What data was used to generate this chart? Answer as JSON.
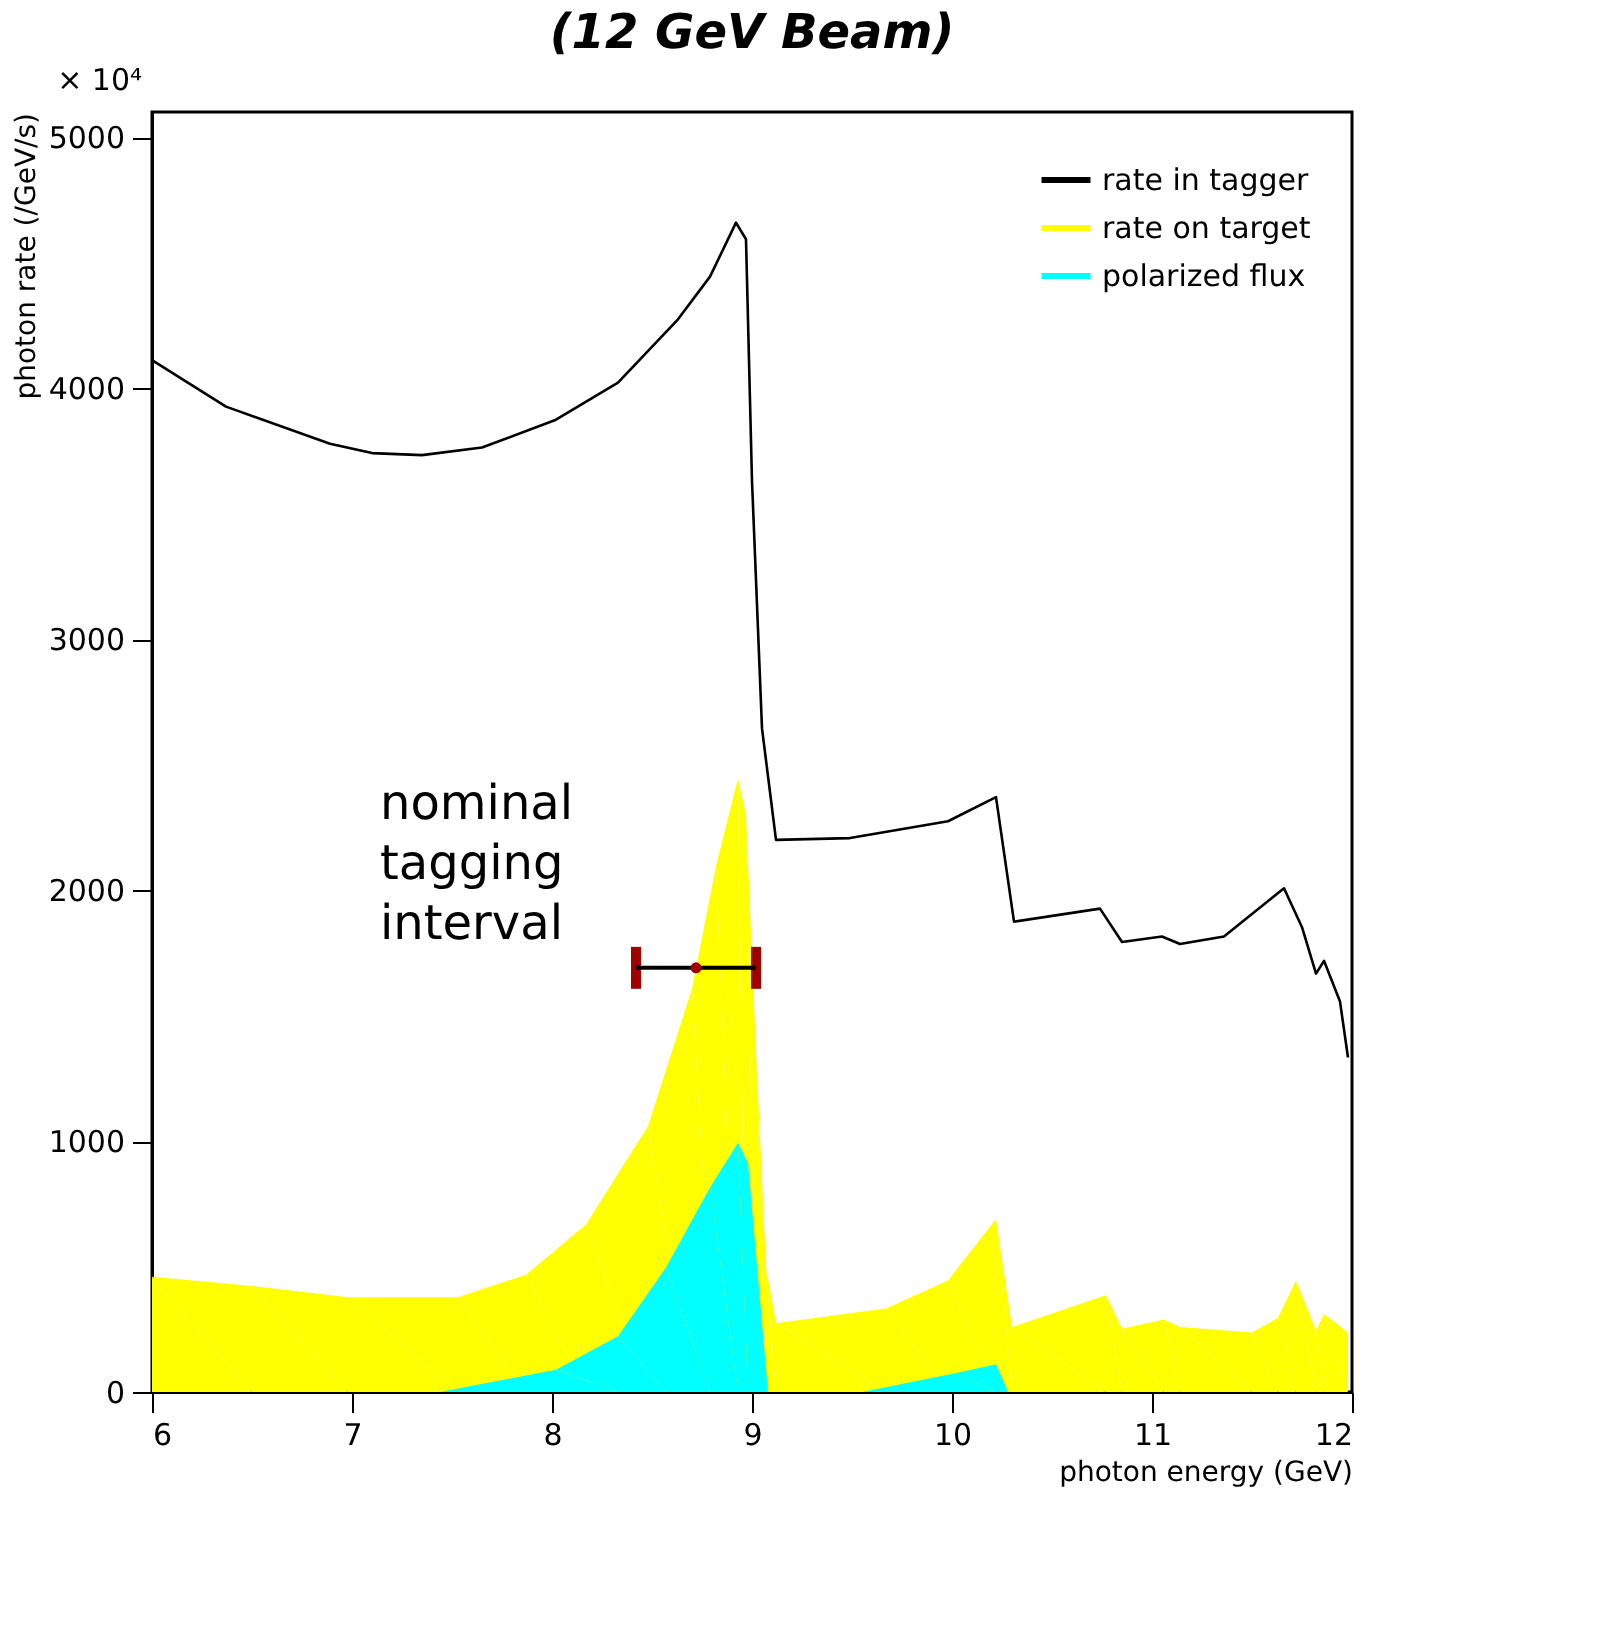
{
  "chart_data": {
    "type": "line",
    "title": "(12 GeV Beam)",
    "xlabel": "photon energy (GeV)",
    "ylabel": "photon rate (/GeV/s)",
    "xlim": [
      6,
      12
    ],
    "ylim": [
      0,
      5100
    ],
    "xticks": [
      6,
      7,
      8,
      9,
      10,
      11,
      12
    ],
    "yticks": [
      0,
      1000,
      2000,
      3000,
      4000,
      5000
    ],
    "grid": false,
    "legend": "top right",
    "series": [
      {
        "name": "rate in tagger",
        "color": "#000000",
        "x": [
          6.0,
          6.37,
          6.89,
          7.1,
          7.35,
          7.65,
          8.02,
          8.33,
          8.63,
          8.79,
          8.92,
          8.97,
          9.0,
          9.05,
          9.12,
          9.49,
          9.98,
          10.22,
          10.31,
          10.74,
          10.85,
          11.05,
          11.14,
          11.36,
          11.66,
          11.75,
          11.82,
          11.86,
          11.94,
          11.98
        ],
        "values": [
          4111,
          3926,
          3778,
          3741,
          3733,
          3763,
          3874,
          4022,
          4274,
          4444,
          4659,
          4593,
          3630,
          2644,
          2200,
          2207,
          2274,
          2370,
          1874,
          1926,
          1793,
          1815,
          1785,
          1815,
          2007,
          1852,
          1667,
          1718,
          1556,
          1333
        ]
      },
      {
        "name": "rate on target",
        "type": "area",
        "color": "#ffff00",
        "x": [
          6.0,
          6.5,
          6.98,
          7.53,
          7.87,
          8.17,
          8.48,
          8.7,
          8.82,
          8.93,
          8.97,
          9.02,
          9.07,
          9.12,
          9.67,
          9.98,
          10.22,
          10.3,
          10.77,
          10.85,
          11.06,
          11.14,
          11.5,
          11.63,
          11.72,
          11.82,
          11.86,
          11.98
        ],
        "values": [
          459,
          422,
          378,
          378,
          467,
          667,
          1059,
          1607,
          2096,
          2444,
          2296,
          1356,
          496,
          274,
          333,
          444,
          689,
          259,
          385,
          252,
          289,
          259,
          237,
          296,
          444,
          244,
          311,
          237
        ]
      },
      {
        "name": "polarized flux",
        "type": "area",
        "color": "#00ffff",
        "x": [
          6.0,
          7.44,
          8.02,
          8.33,
          8.57,
          8.79,
          8.93,
          8.98,
          9.08,
          9.55,
          10.01,
          10.22,
          10.28,
          11.98
        ],
        "values": [
          0,
          0,
          89,
          222,
          496,
          815,
          993,
          911,
          0,
          0,
          74,
          111,
          0,
          0
        ]
      },
      {
        "type": "scatter",
        "color": "#a00000",
        "x": [
          8.72
        ],
        "values": [
          1690
        ],
        "xerrors": [
          0.3
        ]
      }
    ],
    "annotations": [
      "× 10⁴",
      "nominal tagging interval"
    ]
  }
}
